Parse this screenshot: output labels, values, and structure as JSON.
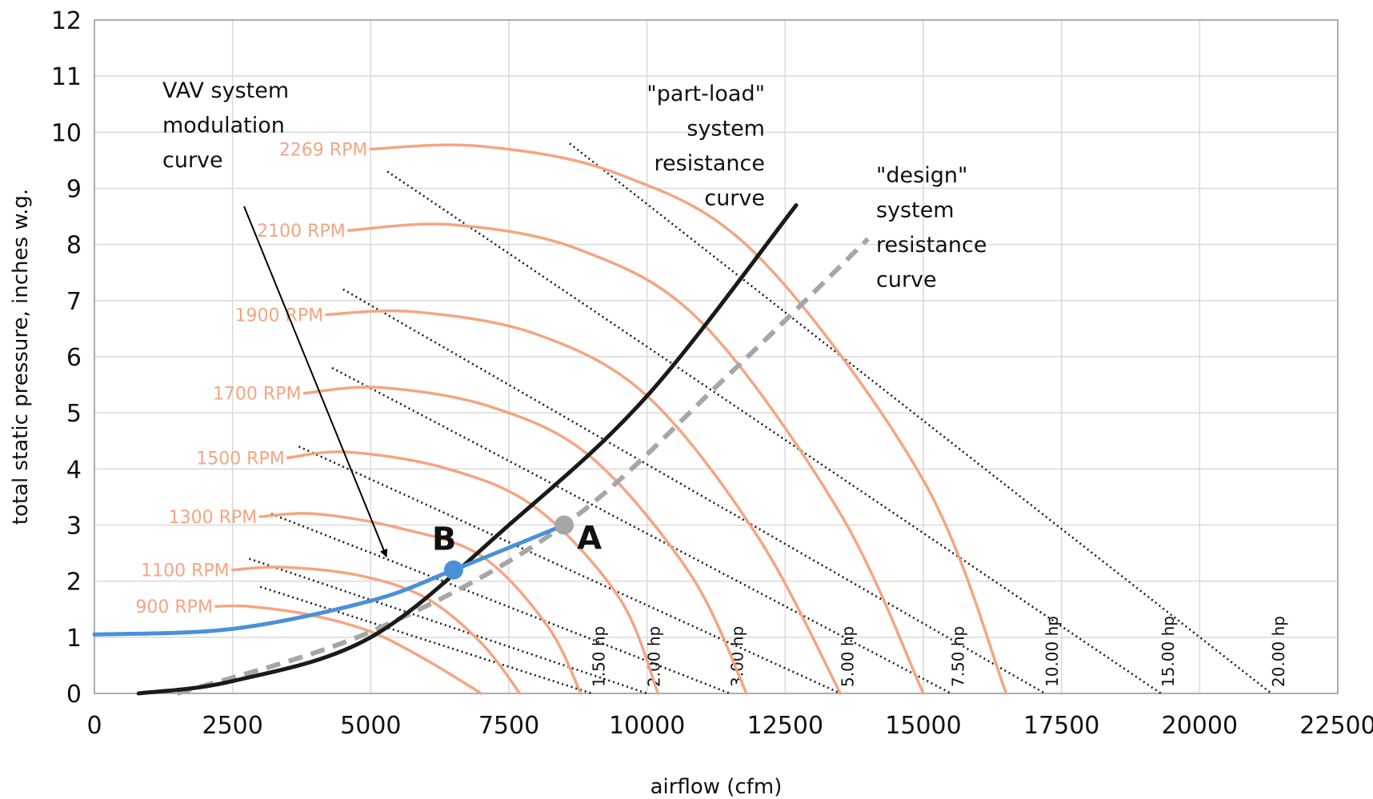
{
  "chart_data": {
    "type": "line",
    "xlabel": "airflow (cfm)",
    "ylabel": "total static pressure, inches w.g.",
    "xlim": [
      0,
      22500
    ],
    "ylim": [
      0,
      12
    ],
    "x_ticks": [
      "0",
      "2500",
      "5000",
      "7500",
      "10000",
      "12500",
      "15000",
      "17500",
      "20000",
      "22500"
    ],
    "y_ticks": [
      "0",
      "1",
      "2",
      "3",
      "4",
      "5",
      "6",
      "7",
      "8",
      "9",
      "10",
      "11",
      "12"
    ],
    "grid": true,
    "colors": {
      "fan_curve": "#f4a582",
      "rpm_label": "#f4a582",
      "system_curve": "#1a1a1a",
      "design_curve": "#a6a6a6",
      "vav_curve": "#4a90d9",
      "point_a": "#a6a6a6",
      "point_b": "#4a90d9",
      "grid": "#d9d9d9"
    },
    "fan_curves": [
      {
        "name": "2269 RPM",
        "x": [
          5000,
          7000,
          9500,
          12000,
          15000,
          16500
        ],
        "y": [
          9.7,
          9.75,
          9.25,
          7.8,
          3.8,
          0
        ]
      },
      {
        "name": "2100 RPM",
        "x": [
          4600,
          6500,
          8800,
          11000,
          13500,
          15000
        ],
        "y": [
          8.25,
          8.35,
          7.9,
          6.6,
          3.2,
          0
        ]
      },
      {
        "name": "1900 RPM",
        "x": [
          4200,
          5800,
          8000,
          10000,
          12000,
          13500
        ],
        "y": [
          6.75,
          6.8,
          6.4,
          5.3,
          2.8,
          0
        ]
      },
      {
        "name": "1700 RPM",
        "x": [
          3800,
          5200,
          7200,
          9000,
          10800,
          11800
        ],
        "y": [
          5.35,
          5.45,
          5.1,
          4.2,
          2.1,
          0
        ]
      },
      {
        "name": "1500 RPM",
        "x": [
          3500,
          4600,
          6400,
          8000,
          9500,
          10200
        ],
        "y": [
          4.2,
          4.3,
          4.0,
          3.3,
          1.7,
          0
        ]
      },
      {
        "name": "1300 RPM",
        "x": [
          3000,
          4000,
          5500,
          7000,
          8200,
          8800
        ],
        "y": [
          3.15,
          3.2,
          2.95,
          2.45,
          1.2,
          0
        ]
      },
      {
        "name": "1100 RPM",
        "x": [
          2500,
          3400,
          4800,
          6000,
          7000,
          7700
        ],
        "y": [
          2.2,
          2.25,
          2.1,
          1.7,
          0.9,
          0
        ]
      },
      {
        "name": "900 RPM",
        "x": [
          2200,
          2800,
          3900,
          5000,
          6000,
          7000
        ],
        "y": [
          1.55,
          1.55,
          1.4,
          1.1,
          0.6,
          0
        ]
      }
    ],
    "hp_lines": [
      {
        "name": "1.50 hp",
        "x": [
          3000,
          9000
        ],
        "y": [
          1.9,
          0
        ]
      },
      {
        "name": "2.00 hp",
        "x": [
          2800,
          10000
        ],
        "y": [
          2.4,
          0
        ]
      },
      {
        "name": "3.00 hp",
        "x": [
          3200,
          11500
        ],
        "y": [
          3.2,
          0
        ]
      },
      {
        "name": "5.00 hp",
        "x": [
          3700,
          13500
        ],
        "y": [
          4.4,
          0
        ]
      },
      {
        "name": "7.50 hp",
        "x": [
          4300,
          15500
        ],
        "y": [
          5.8,
          0
        ]
      },
      {
        "name": "10.00 hp",
        "x": [
          4500,
          17200
        ],
        "y": [
          7.2,
          0
        ]
      },
      {
        "name": "15.00 hp",
        "x": [
          5300,
          19300
        ],
        "y": [
          9.3,
          0
        ]
      },
      {
        "name": "20.00 hp",
        "x": [
          8600,
          21300
        ],
        "y": [
          9.8,
          0
        ]
      }
    ],
    "part_load_curve": {
      "name": "\"part-load\" system resistance curve",
      "x": [
        800,
        2500,
        5000,
        7500,
        10000,
        12700
      ],
      "y": [
        0,
        0.22,
        1.0,
        3.0,
        5.3,
        8.7
      ]
    },
    "design_curve": {
      "name": "\"design\" system resistance curve",
      "x": [
        1500,
        5000,
        8500,
        11500,
        14000
      ],
      "y": [
        0,
        1.1,
        3.0,
        5.7,
        8.1
      ]
    },
    "vav_curve": {
      "name": "VAV system modulation curve",
      "x": [
        0,
        2500,
        5000,
        6500,
        8500
      ],
      "y": [
        1.05,
        1.15,
        1.65,
        2.2,
        3.0
      ]
    },
    "points": [
      {
        "label": "A",
        "x": 8500,
        "y": 3.0
      },
      {
        "label": "B",
        "x": 6500,
        "y": 2.2
      }
    ],
    "annotations": [
      {
        "lines": [
          "VAV system",
          "modulation",
          "curve"
        ]
      },
      {
        "lines": [
          "\"part-load\"",
          "system",
          "resistance",
          "curve"
        ]
      },
      {
        "lines": [
          "\"design\"",
          "system",
          "resistance",
          "curve"
        ]
      }
    ]
  }
}
